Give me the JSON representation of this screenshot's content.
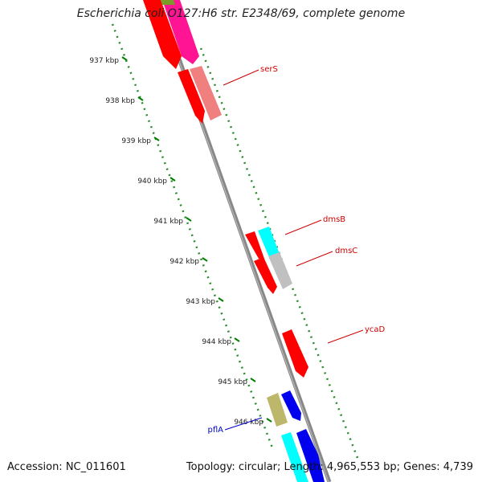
{
  "title": "Escherichia coli O127:H6 str. E2348/69, complete genome",
  "accession": "Accession: NC_011601",
  "summary": "Topology: circular; Length: 4,965,553 bp; Genes: 4,739",
  "ticks": [
    {
      "label": "937 kbp",
      "kbp": 937
    },
    {
      "label": "938 kbp",
      "kbp": 938
    },
    {
      "label": "939 kbp",
      "kbp": 939
    },
    {
      "label": "940 kbp",
      "kbp": 940
    },
    {
      "label": "941 kbp",
      "kbp": 941
    },
    {
      "label": "942 kbp",
      "kbp": 942
    },
    {
      "label": "943 kbp",
      "kbp": 943
    },
    {
      "label": "944 kbp",
      "kbp": 944
    },
    {
      "label": "945 kbp",
      "kbp": 945
    },
    {
      "label": "946 kbp",
      "kbp": 946
    }
  ],
  "genes": [
    {
      "label": "serS",
      "strand": "forward",
      "color": "#cc0000",
      "label_color": "#cc0000"
    },
    {
      "label": "dmsB",
      "strand": "forward",
      "color": "#cc0000",
      "label_color": "#cc0000"
    },
    {
      "label": "dmsC",
      "strand": "forward",
      "color": "#cc0000",
      "label_color": "#cc0000"
    },
    {
      "label": "ycaD",
      "strand": "forward",
      "color": "#cc0000",
      "label_color": "#cc0000"
    },
    {
      "label": "pflA",
      "strand": "reverse",
      "color": "#0000cc",
      "label_color": "#0000cc"
    }
  ],
  "colors": {
    "cds": "#ff0000",
    "trna": "#ff1493",
    "rrna_like": "#f08080",
    "blue": "#0000ee",
    "cyan": "#00ffff",
    "gray": "#c0c0c0",
    "khaki": "#bdb76b",
    "olive": "#6b8e23",
    "backbone": "#808080",
    "tick_green": "#008000"
  }
}
